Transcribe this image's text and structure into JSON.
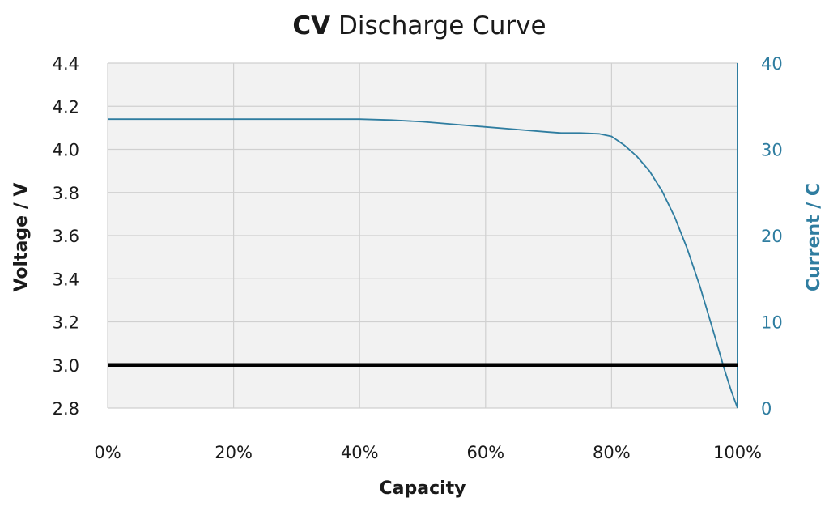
{
  "chart_data": {
    "type": "line",
    "title": {
      "bold": "CV",
      "rest": " Discharge Curve"
    },
    "xlabel": "Capacity",
    "ylabel_left": "Voltage / V",
    "ylabel_right": "Current / C",
    "xlim": [
      0,
      100
    ],
    "ylim_left": [
      2.8,
      4.4
    ],
    "ylim_right": [
      0,
      40
    ],
    "x_ticks": [
      "0%",
      "20%",
      "40%",
      "60%",
      "80%",
      "100%"
    ],
    "y_left_ticks": [
      "4.4",
      "4.2",
      "4.0",
      "3.8",
      "3.6",
      "3.4",
      "3.2",
      "3.0",
      "2.8"
    ],
    "y_right_ticks": [
      "40",
      "30",
      "20",
      "10",
      "0"
    ],
    "grid": true,
    "colors": {
      "plot_bg": "#f2f2f2",
      "grid": "#d0d0d0",
      "current_line": "#2f7da0",
      "voltage_line": "#000000",
      "right_axis": "#2f7da0"
    },
    "series": [
      {
        "axis": "right",
        "x": [
          0,
          20,
          40,
          45,
          50,
          55,
          60,
          65,
          70,
          72,
          75,
          78,
          80,
          82,
          84,
          86,
          88,
          90,
          92,
          94,
          96,
          98,
          99,
          100
        ],
        "y": [
          33.5,
          33.5,
          33.5,
          33.4,
          33.2,
          32.9,
          32.6,
          32.3,
          32.0,
          31.9,
          31.9,
          31.8,
          31.5,
          30.5,
          29.2,
          27.5,
          25.2,
          22.2,
          18.5,
          14.2,
          9.3,
          4.3,
          2.0,
          0
        ]
      },
      {
        "axis": "left",
        "x": [
          0,
          100
        ],
        "y": [
          3.0,
          3.0
        ]
      }
    ]
  }
}
